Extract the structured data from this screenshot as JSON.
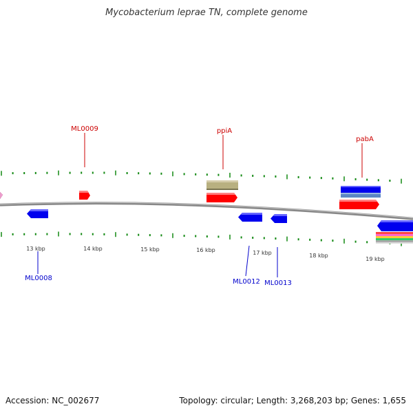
{
  "title": "Mycobacterium leprae TN, complete genome",
  "footer": {
    "accession": "Accession: NC_002677",
    "summary": "Topology: circular; Length: 3,268,203 bp; Genes: 1,655"
  },
  "colors": {
    "forward_label": "#cc0000",
    "reverse_label": "#0000cc",
    "backbone": "#888888",
    "ticks": "#118811",
    "forward_gene": "#ff0000",
    "reverse_gene": "#0000ee",
    "olive_feature": "#b8b080",
    "steelblue_feature": "#5b86c4",
    "pink_feature": "#f0a0d0"
  },
  "kbp_labels": [
    {
      "text": "13 kbp",
      "kb": 13
    },
    {
      "text": "14 kbp",
      "kb": 14
    },
    {
      "text": "15 kbp",
      "kb": 15
    },
    {
      "text": "16 kbp",
      "kb": 16
    },
    {
      "text": "17 kbp",
      "kb": 17
    },
    {
      "text": "18 kbp",
      "kb": 18
    },
    {
      "text": "19 kbp",
      "kb": 19
    }
  ],
  "forward_labels": [
    {
      "text": "ML0009"
    },
    {
      "text": "ppiA"
    },
    {
      "text": "pabA"
    }
  ],
  "reverse_labels": [
    {
      "text": "ML0008"
    },
    {
      "text": "ML0012"
    },
    {
      "text": "ML0013"
    }
  ]
}
